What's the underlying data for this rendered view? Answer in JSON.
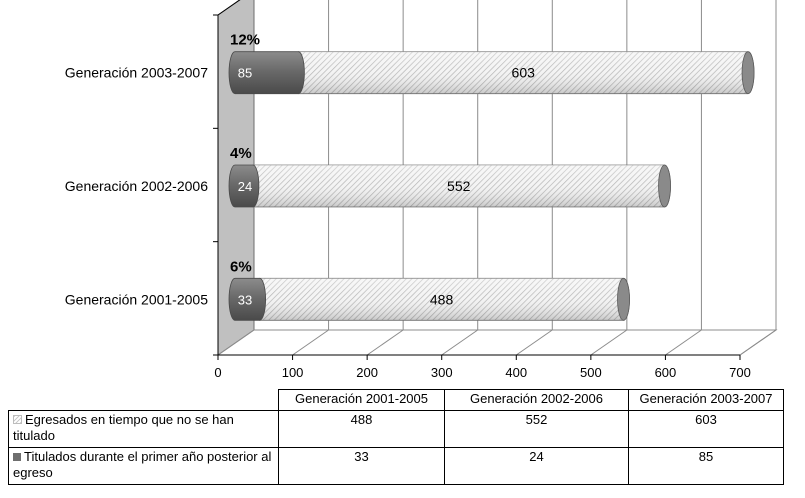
{
  "chart_data": {
    "type": "bar",
    "orientation": "horizontal",
    "stacked": true,
    "style": "3d-cylinder",
    "categories": [
      "Generación 2003-2007",
      "Generación 2002-2006",
      "Generación 2001-2005"
    ],
    "series": [
      {
        "name": "Titulados durante el primer año posterior al egreso",
        "values": [
          85,
          24,
          33
        ],
        "color": "#6e6e6e"
      },
      {
        "name": "Egresados en tiempo que no se han titulado",
        "values": [
          603,
          552,
          488
        ],
        "color": "#d9d9d9"
      }
    ],
    "percent_labels": [
      "12%",
      "4%",
      "6%"
    ],
    "xticks": [
      "0",
      "100",
      "200",
      "300",
      "400",
      "500",
      "600",
      "700"
    ],
    "xlim": [
      0,
      700
    ],
    "grid": true,
    "legend": "data-table-below"
  },
  "table": {
    "columns": [
      "Generación 2001-2005",
      "Generación 2002-2006",
      "Generación 2003-2007"
    ],
    "rows": [
      {
        "label": "Egresados en tiempo que no se han titulado",
        "values": [
          "488",
          "552",
          "603"
        ]
      },
      {
        "label": "Titulados durante el primer año posterior al egreso",
        "values": [
          "33",
          "24",
          "85"
        ]
      }
    ]
  }
}
